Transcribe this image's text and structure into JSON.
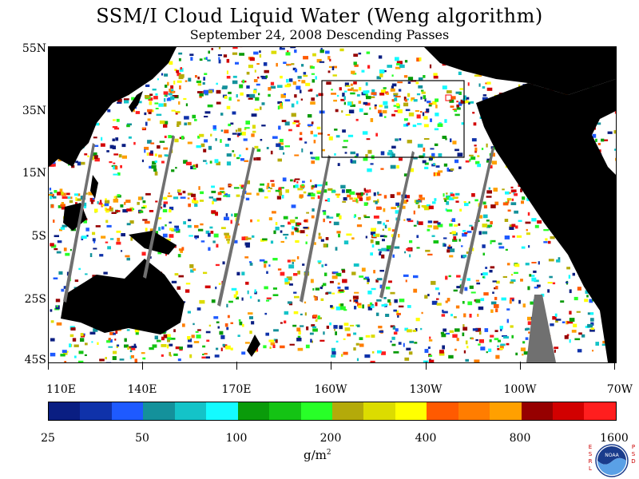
{
  "title": "SSM/I Cloud Liquid Water (Weng algorithm)",
  "subtitle": "September 24, 2008  Descending Passes",
  "lat_labels": [
    "55N",
    "35N",
    "15N",
    "5S",
    "25S",
    "45S"
  ],
  "lon_labels": [
    "110E",
    "140E",
    "170E",
    "160W",
    "130W",
    "100W",
    "70W"
  ],
  "colorbar": {
    "colors": [
      "#0a1e82",
      "#0f32aa",
      "#1e5aff",
      "#14919b",
      "#14c3c8",
      "#14fbff",
      "#0a9b0a",
      "#14c314",
      "#28ff28",
      "#b4aa0a",
      "#dcdc00",
      "#ffff00",
      "#ff5a00",
      "#ff7d00",
      "#ffa000",
      "#960000",
      "#d20000",
      "#ff1e1e"
    ],
    "tick_labels": [
      "25",
      "50",
      "100",
      "200",
      "400",
      "800",
      "1600"
    ]
  },
  "unit": {
    "base": "g/m",
    "exponent": "2"
  },
  "logo": {
    "text": "NOAA",
    "left_letters": [
      "E",
      "S",
      "R",
      "L"
    ],
    "right_letters": [
      "P",
      "S",
      "D"
    ]
  },
  "colors": {
    "land": "#000000",
    "gap": "#707070",
    "ocean": "#ffffff",
    "box": "#000000",
    "marker": "#ff0000"
  }
}
